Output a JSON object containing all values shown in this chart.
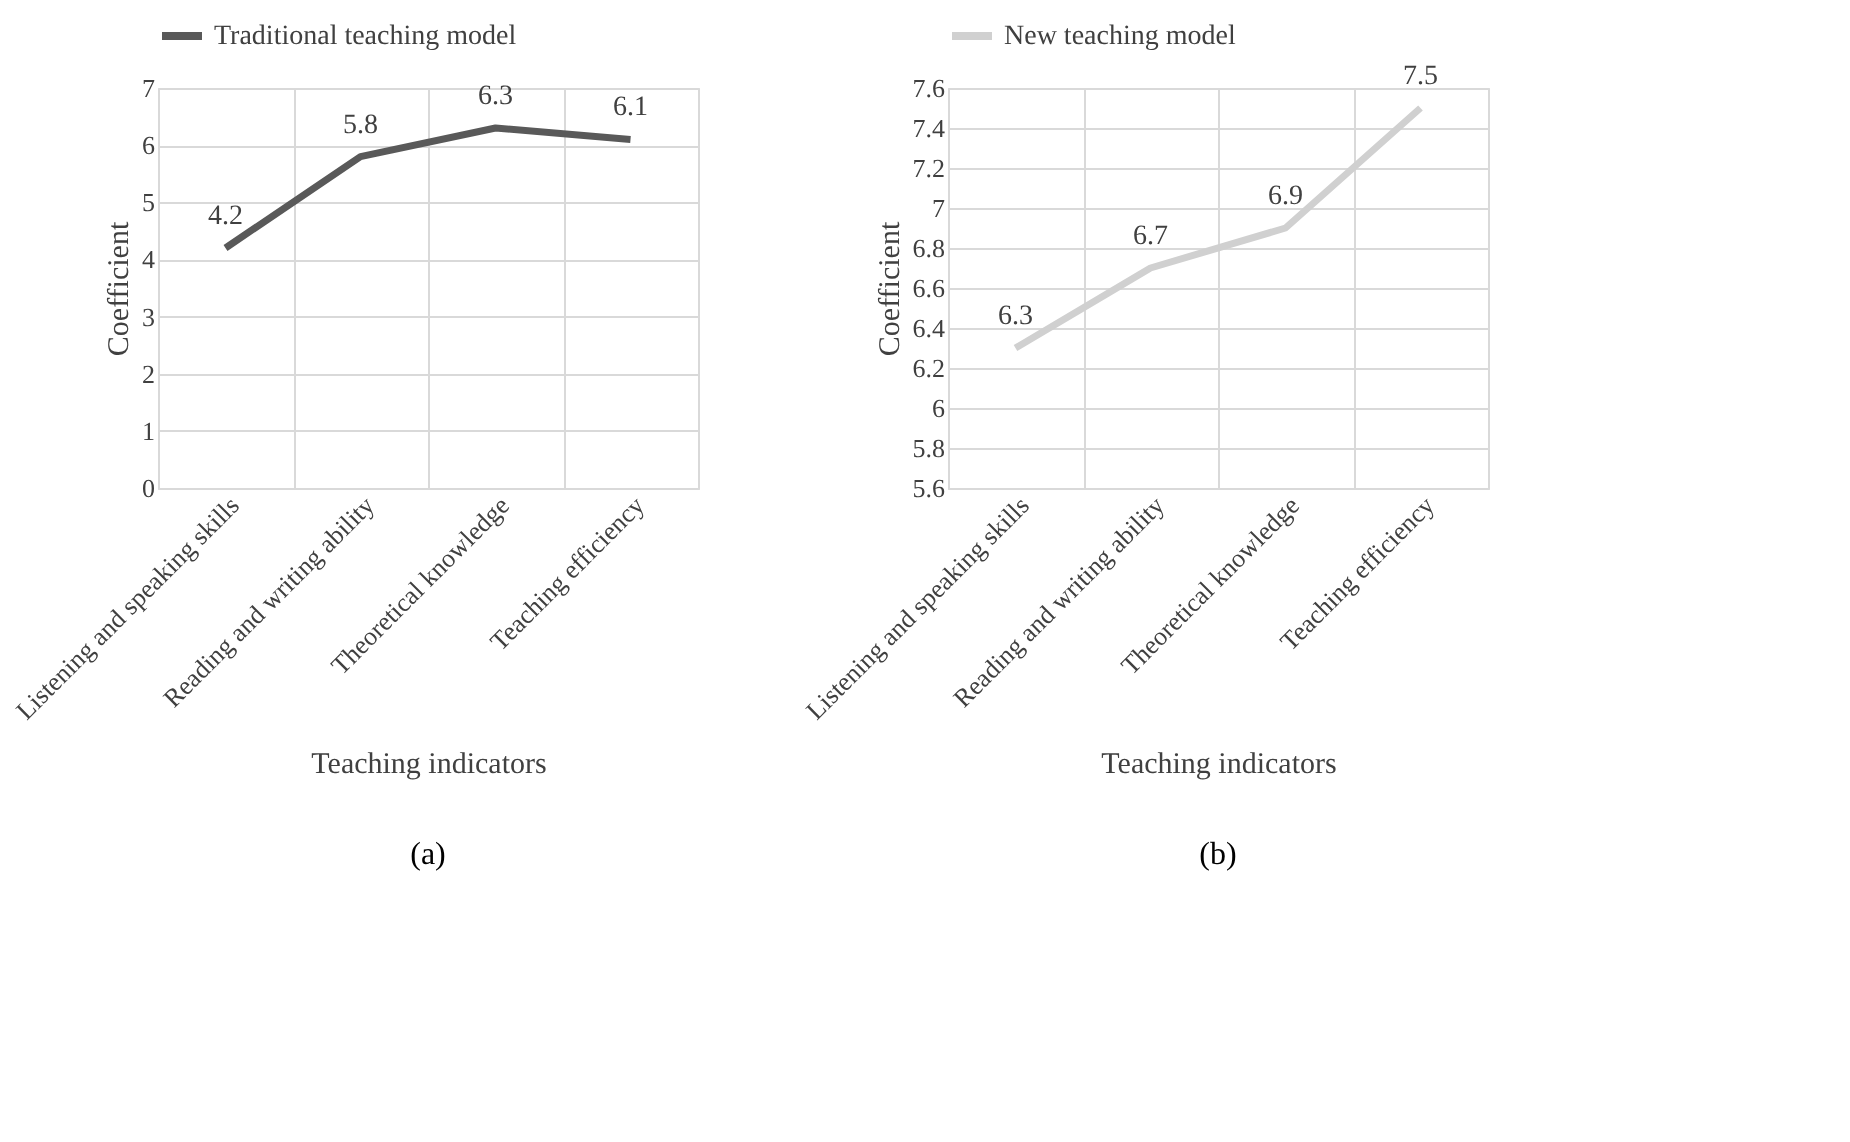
{
  "chart_data": [
    {
      "type": "line",
      "categories": [
        "Listening and speaking skills",
        "Reading and writing ability",
        "Theoretical knowledge",
        "Teaching efficiency"
      ],
      "series": [
        {
          "name": "Traditional teaching model",
          "color": "#595959",
          "values": [
            4.2,
            5.8,
            6.3,
            6.1
          ]
        }
      ],
      "xlabel": "Teaching indicators",
      "ylabel": "Coefficient",
      "ylim": [
        0,
        7
      ],
      "yticks": [
        0,
        1,
        2,
        3,
        4,
        5,
        6,
        7
      ],
      "grid": true,
      "legend": "top",
      "data_labels": true,
      "annotations": [
        "(a)"
      ]
    },
    {
      "type": "line",
      "categories": [
        "Listening and speaking skills",
        "Reading and writing ability",
        "Theoretical knowledge",
        "Teaching efficiency"
      ],
      "series": [
        {
          "name": "New teaching model",
          "color": "#d0d0d0",
          "values": [
            6.3,
            6.7,
            6.9,
            7.5
          ]
        }
      ],
      "xlabel": "Teaching indicators",
      "ylabel": "Coefficient",
      "ylim": [
        5.6,
        7.6
      ],
      "yticks": [
        5.6,
        5.8,
        6,
        6.2,
        6.4,
        6.6,
        6.8,
        7,
        7.2,
        7.4,
        7.6
      ],
      "grid": true,
      "legend": "top",
      "data_labels": true,
      "annotations": [
        "(b)"
      ]
    }
  ]
}
